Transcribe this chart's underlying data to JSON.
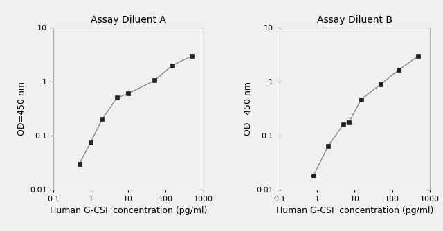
{
  "panel_A": {
    "title": "Assay Diluent A",
    "x": [
      0.5,
      1.0,
      2.0,
      5.0,
      10.0,
      50.0,
      150.0,
      500.0
    ],
    "y": [
      0.03,
      0.075,
      0.2,
      0.5,
      0.6,
      1.05,
      2.0,
      3.0
    ],
    "xlim": [
      0.1,
      1000
    ],
    "ylim": [
      0.01,
      10
    ]
  },
  "panel_B": {
    "title": "Assay Diluent B",
    "x": [
      0.8,
      2.0,
      5.0,
      7.0,
      15.0,
      50.0,
      150.0,
      500.0
    ],
    "y": [
      0.018,
      0.065,
      0.16,
      0.175,
      0.47,
      0.9,
      1.65,
      3.0
    ],
    "xlim": [
      0.1,
      1000
    ],
    "ylim": [
      0.01,
      10
    ]
  },
  "xlabel": "Human G-CSF concentration (pg/ml)",
  "ylabel": "OD=450 nm",
  "line_color": "#888888",
  "marker_color": "#222222",
  "marker_size": 4,
  "bg_color": "#f0f0f0",
  "plot_bg": "#f0f0f0",
  "title_fontsize": 10,
  "label_fontsize": 9,
  "tick_fontsize": 8
}
